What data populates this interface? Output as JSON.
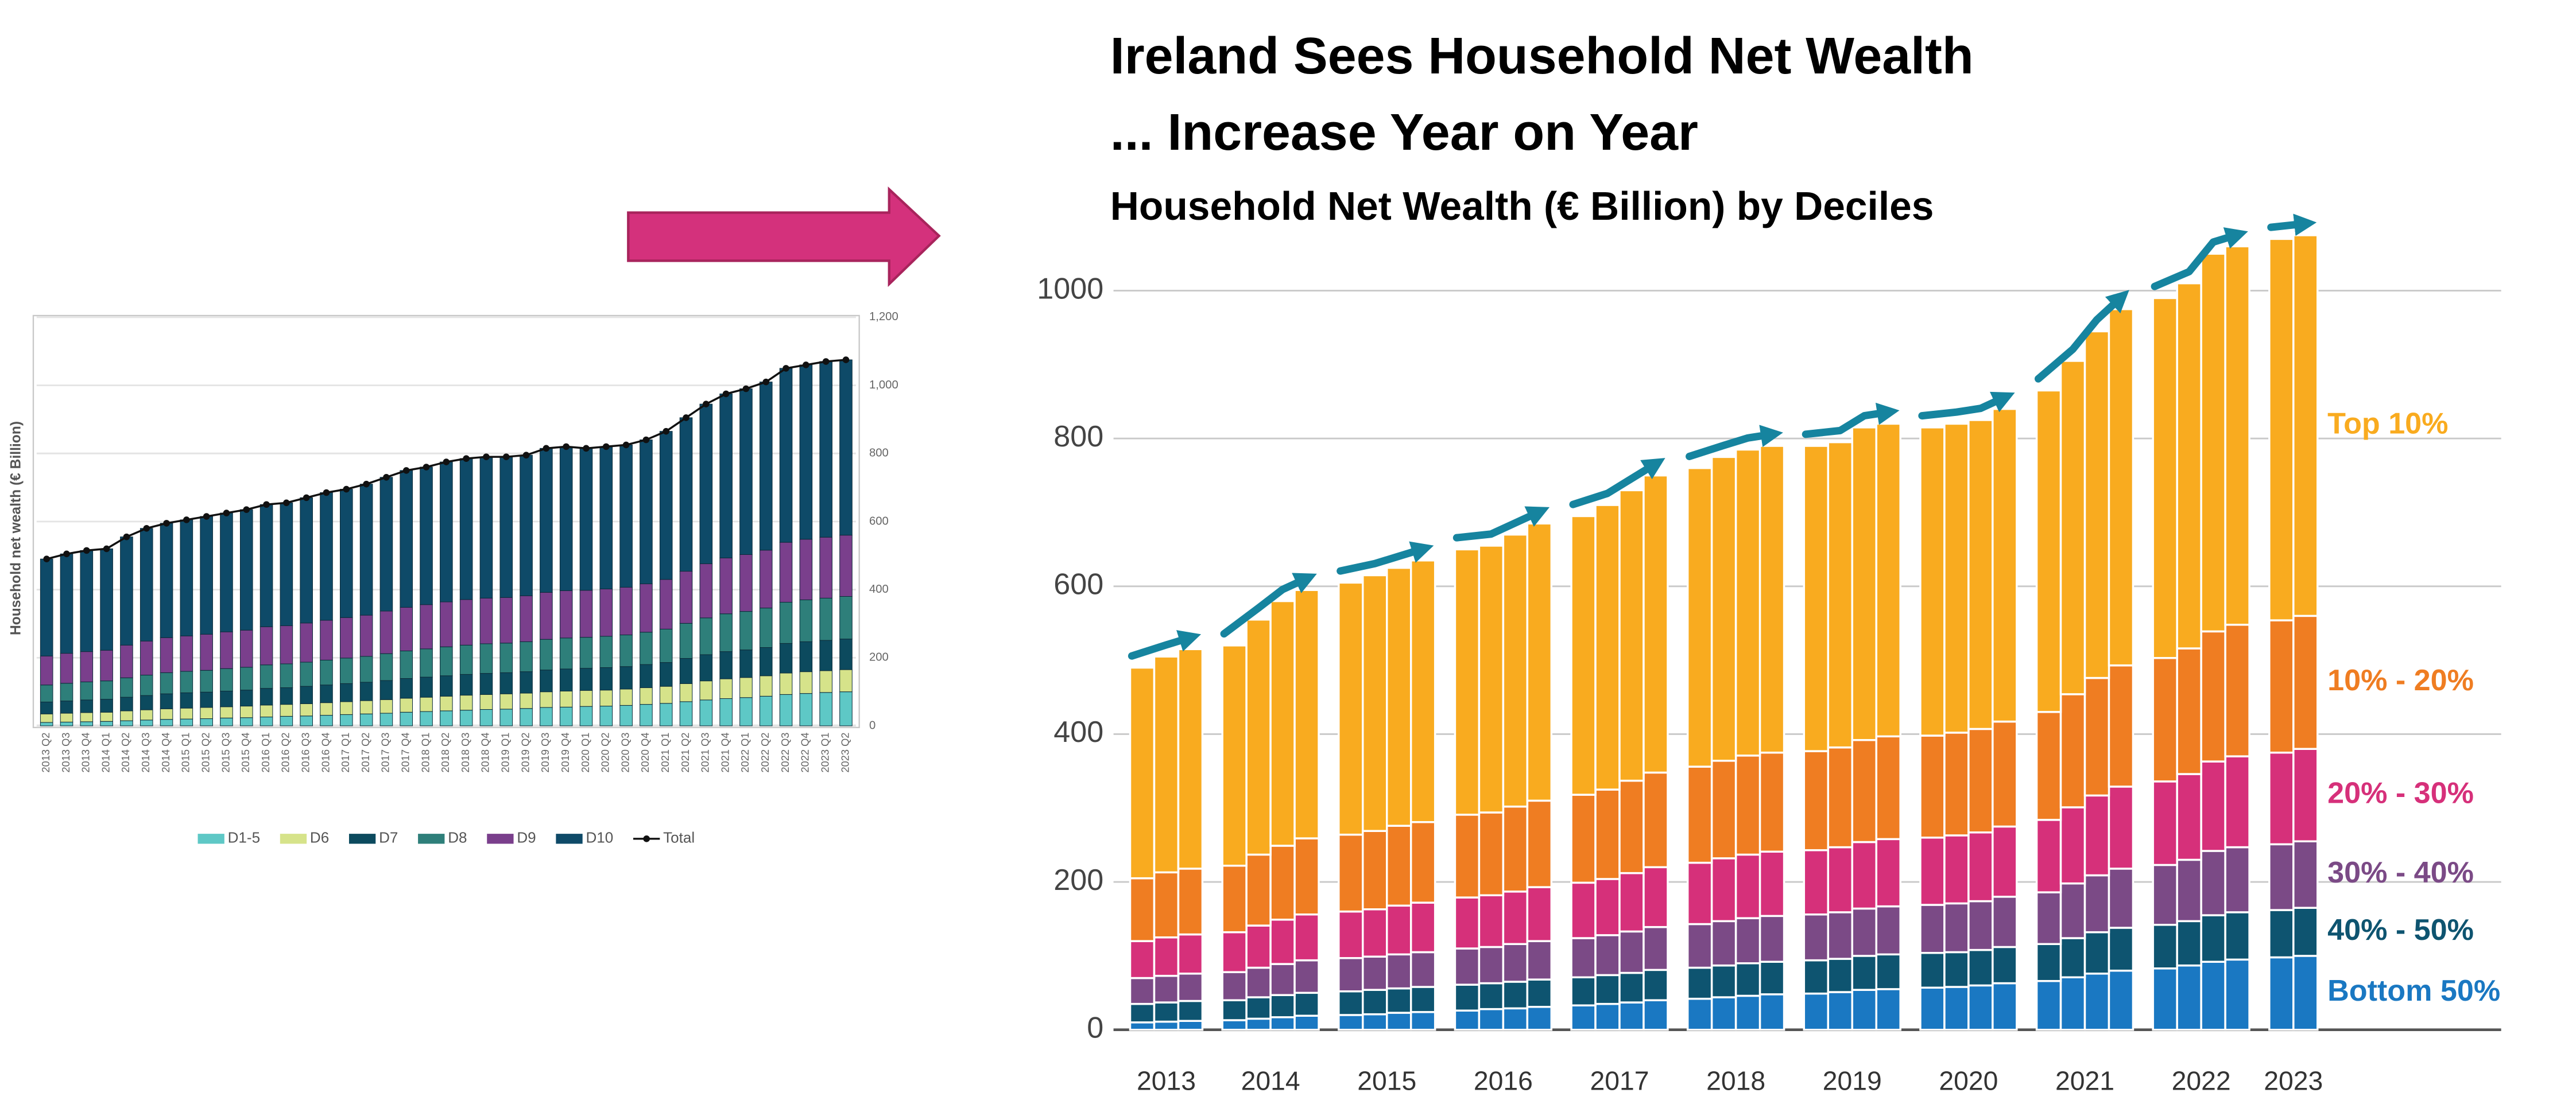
{
  "chart_data": [
    {
      "type": "bar",
      "stacked": true,
      "ylabel": "Household net wealth (€ Billion)",
      "legend": "bottom",
      "grid": true,
      "categories": [
        "2013 Q2",
        "2013 Q3",
        "2013 Q4",
        "2014 Q1",
        "2014 Q2",
        "2014 Q3",
        "2014 Q4",
        "2015 Q1",
        "2015 Q2",
        "2015 Q3",
        "2015 Q4",
        "2016 Q1",
        "2016 Q2",
        "2016 Q3",
        "2016 Q4",
        "2017 Q1",
        "2017 Q2",
        "2017 Q3",
        "2017 Q4",
        "2018 Q1",
        "2018 Q2",
        "2018 Q3",
        "2018 Q4",
        "2019 Q1",
        "2019 Q2",
        "2019 Q3",
        "2019 Q4",
        "2020 Q1",
        "2020 Q2",
        "2020 Q3",
        "2020 Q4",
        "2021 Q1",
        "2021 Q2",
        "2021 Q3",
        "2021 Q4",
        "2022 Q1",
        "2022 Q2",
        "2022 Q3",
        "2022 Q4",
        "2023 Q1",
        "2023 Q2"
      ],
      "ylim": [
        0,
        1200
      ],
      "yticks": [
        0,
        200,
        400,
        600,
        800,
        {
          "value": 1000,
          "label": "1,000"
        },
        {
          "value": 1200,
          "label": "1,200"
        }
      ],
      "series": [
        {
          "name": "D1-5",
          "color": "#5ec8c6",
          "values": [
            10,
            11,
            12,
            13,
            15,
            17,
            19,
            20,
            21,
            23,
            24,
            26,
            28,
            29,
            31,
            33,
            35,
            37,
            40,
            42,
            44,
            46,
            48,
            49,
            51,
            54,
            55,
            57,
            58,
            60,
            63,
            66,
            71,
            76,
            80,
            83,
            87,
            92,
            95,
            98,
            100
          ]
        },
        {
          "name": "D6",
          "color": "#d6e38a",
          "values": [
            25,
            26,
            27,
            27,
            29,
            30,
            31,
            32,
            33,
            33,
            34,
            35,
            35,
            36,
            37,
            38,
            39,
            40,
            41,
            42,
            43,
            44,
            44,
            45,
            45,
            46,
            47,
            47,
            47,
            48,
            49,
            50,
            53,
            56,
            58,
            59,
            60,
            63,
            64,
            64,
            65
          ]
        },
        {
          "name": "D7",
          "color": "#0c4a5e",
          "values": [
            35,
            36,
            37,
            38,
            40,
            42,
            44,
            45,
            45,
            46,
            47,
            49,
            49,
            51,
            52,
            53,
            54,
            56,
            58,
            59,
            60,
            61,
            62,
            62,
            63,
            64,
            65,
            65,
            66,
            66,
            68,
            70,
            74,
            77,
            80,
            81,
            83,
            87,
            88,
            89,
            90
          ]
        },
        {
          "name": "D8",
          "color": "#2e7f7a",
          "values": [
            50,
            52,
            53,
            54,
            57,
            60,
            62,
            63,
            64,
            66,
            67,
            69,
            70,
            71,
            73,
            75,
            76,
            79,
            81,
            83,
            85,
            86,
            87,
            87,
            88,
            90,
            91,
            91,
            92,
            93,
            95,
            98,
            103,
            108,
            111,
            113,
            116,
            121,
            123,
            124,
            125
          ]
        },
        {
          "name": "D9",
          "color": "#7a3f8c",
          "values": [
            85,
            88,
            89,
            90,
            96,
            100,
            103,
            104,
            106,
            108,
            109,
            112,
            112,
            115,
            117,
            119,
            121,
            125,
            128,
            130,
            132,
            134,
            134,
            134,
            135,
            138,
            139,
            138,
            139,
            140,
            142,
            146,
            153,
            159,
            164,
            167,
            170,
            176,
            178,
            179,
            180
          ]
        },
        {
          "name": "D10",
          "color": "#0e4a68",
          "values": [
            285,
            292,
            297,
            298,
            318,
            331,
            336,
            341,
            346,
            349,
            354,
            359,
            361,
            368,
            375,
            377,
            385,
            393,
            402,
            404,
            411,
            414,
            415,
            413,
            413,
            423,
            423,
            417,
            418,
            418,
            423,
            435,
            451,
            469,
            482,
            487,
            494,
            511,
            512,
            516,
            515
          ]
        },
        {
          "name": "Total",
          "type": "line",
          "color": "#111111",
          "values": [
            490,
            505,
            515,
            520,
            555,
            580,
            595,
            605,
            615,
            625,
            635,
            650,
            655,
            670,
            685,
            695,
            710,
            730,
            750,
            760,
            775,
            785,
            790,
            790,
            795,
            815,
            820,
            815,
            820,
            825,
            840,
            865,
            905,
            945,
            975,
            990,
            1010,
            1050,
            1060,
            1070,
            1075
          ]
        }
      ]
    },
    {
      "type": "bar",
      "stacked": true,
      "title": [
        "Ireland Sees Household Net Wealth",
        "... Increase Year on Year"
      ],
      "subtitle": "Household Net Wealth (€ Billion) by Deciles",
      "legend": "right",
      "grid": true,
      "categories": [
        "2013",
        null,
        null,
        "2014",
        null,
        null,
        null,
        "2015",
        null,
        null,
        null,
        "2016",
        null,
        null,
        null,
        "2017",
        null,
        null,
        null,
        "2018",
        null,
        null,
        null,
        "2019",
        null,
        null,
        null,
        "2020",
        null,
        null,
        null,
        "2021",
        null,
        null,
        null,
        "2022",
        null,
        null,
        null,
        "2023",
        null
      ],
      "ylim": [
        0,
        1100
      ],
      "yticks": [
        0,
        200,
        400,
        600,
        800,
        1000
      ],
      "series": [
        {
          "name": "Bottom 50%",
          "color": "#1a78c2",
          "values": [
            10,
            11,
            12,
            13,
            15,
            17,
            19,
            20,
            21,
            23,
            24,
            26,
            28,
            29,
            31,
            33,
            35,
            37,
            40,
            42,
            44,
            46,
            48,
            49,
            51,
            54,
            55,
            57,
            58,
            60,
            63,
            66,
            71,
            76,
            80,
            83,
            87,
            92,
            95,
            98,
            100
          ]
        },
        {
          "name": "40% - 50%",
          "color": "#0e5470",
          "values": [
            25,
            26,
            27,
            27,
            29,
            30,
            31,
            32,
            33,
            33,
            34,
            35,
            35,
            36,
            37,
            38,
            39,
            40,
            41,
            42,
            43,
            44,
            44,
            45,
            45,
            46,
            47,
            47,
            47,
            48,
            49,
            50,
            53,
            56,
            58,
            59,
            60,
            63,
            64,
            64,
            65
          ]
        },
        {
          "name": "30% - 40%",
          "color": "#7b4a86",
          "values": [
            35,
            36,
            37,
            38,
            40,
            42,
            44,
            45,
            45,
            46,
            47,
            49,
            49,
            51,
            52,
            53,
            54,
            56,
            58,
            59,
            60,
            61,
            62,
            62,
            63,
            64,
            65,
            65,
            66,
            66,
            68,
            70,
            74,
            77,
            80,
            81,
            83,
            87,
            88,
            89,
            90
          ]
        },
        {
          "name": "20% - 30%",
          "color": "#d6307a",
          "values": [
            50,
            52,
            53,
            54,
            57,
            60,
            62,
            63,
            64,
            66,
            67,
            69,
            70,
            71,
            73,
            75,
            76,
            79,
            81,
            83,
            85,
            86,
            87,
            87,
            88,
            90,
            91,
            91,
            92,
            93,
            95,
            98,
            103,
            108,
            111,
            113,
            116,
            121,
            123,
            124,
            125
          ]
        },
        {
          "name": "10% - 20%",
          "color": "#ef7d22",
          "values": [
            85,
            88,
            89,
            90,
            96,
            100,
            103,
            104,
            106,
            108,
            109,
            112,
            112,
            115,
            117,
            119,
            121,
            125,
            128,
            130,
            132,
            134,
            134,
            134,
            135,
            138,
            139,
            138,
            139,
            140,
            142,
            146,
            153,
            159,
            164,
            167,
            170,
            176,
            178,
            179,
            180
          ]
        },
        {
          "name": "Top 10%",
          "color": "#f9ab1f",
          "values": [
            285,
            292,
            297,
            298,
            318,
            331,
            336,
            341,
            346,
            349,
            354,
            359,
            361,
            368,
            375,
            377,
            385,
            393,
            402,
            404,
            411,
            414,
            415,
            413,
            413,
            423,
            423,
            417,
            418,
            418,
            423,
            435,
            451,
            469,
            482,
            487,
            494,
            511,
            512,
            516,
            515
          ]
        }
      ]
    }
  ]
}
